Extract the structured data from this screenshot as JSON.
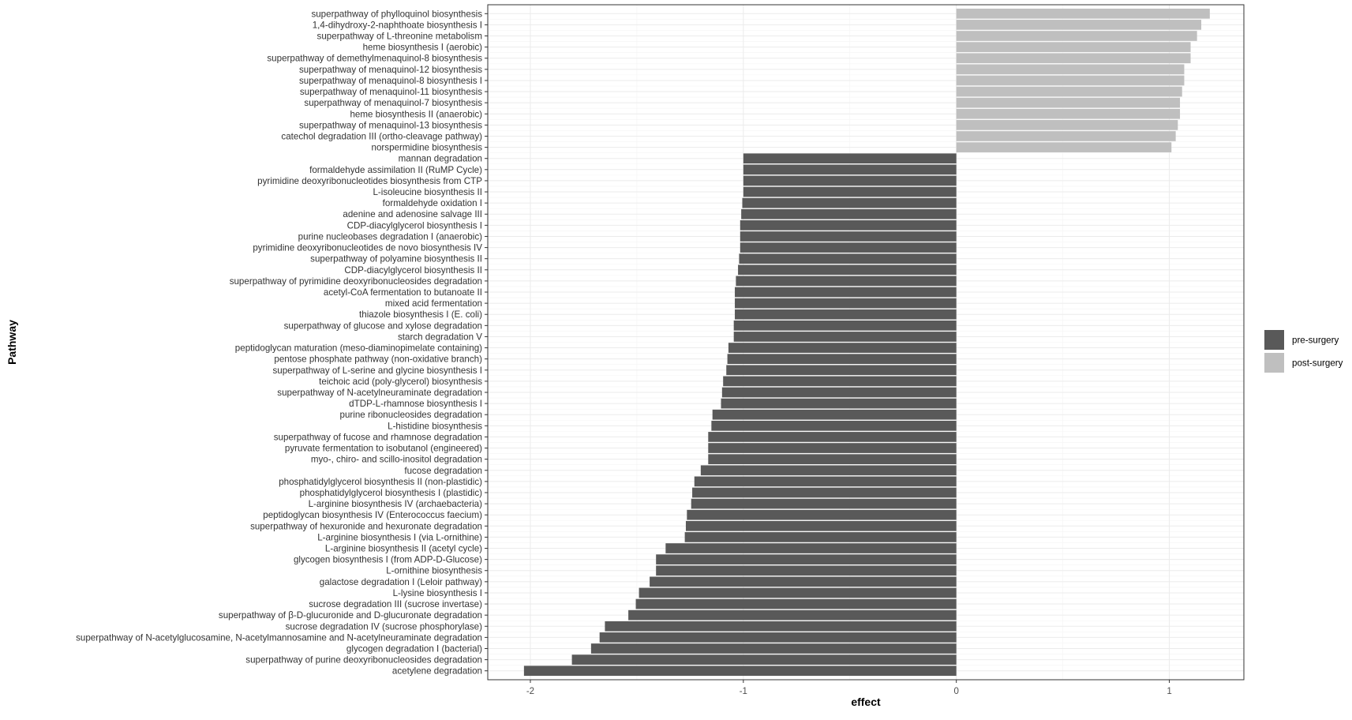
{
  "chart_data": {
    "type": "bar",
    "orientation": "horizontal",
    "xlabel": "effect",
    "ylabel": "Pathway",
    "xlim": [
      -2.2,
      1.35
    ],
    "xticks": [
      -2,
      -1,
      0,
      1
    ],
    "xtick_labels": [
      "-2",
      "-1",
      "0",
      "1"
    ],
    "grid": true,
    "legend_position": "right",
    "colors": {
      "pre-surgery": "#595959",
      "post-surgery": "#bfbfbf"
    },
    "legend": [
      "pre-surgery",
      "post-surgery"
    ],
    "categories": [
      "superpathway of phylloquinol biosynthesis",
      "1,4-dihydroxy-2-naphthoate biosynthesis I",
      "superpathway of L-threonine metabolism",
      "heme biosynthesis I (aerobic)",
      "superpathway of demethylmenaquinol-8 biosynthesis",
      "superpathway of menaquinol-12 biosynthesis",
      "superpathway of menaquinol-8 biosynthesis I",
      "superpathway of menaquinol-11 biosynthesis",
      "superpathway of menaquinol-7 biosynthesis",
      "heme biosynthesis II (anaerobic)",
      "superpathway of menaquinol-13 biosynthesis",
      "catechol degradation III (ortho-cleavage pathway)",
      "norspermidine biosynthesis",
      "mannan degradation",
      "formaldehyde assimilation II (RuMP Cycle)",
      "pyrimidine deoxyribonucleotides biosynthesis from CTP",
      "L-isoleucine biosynthesis II",
      "formaldehyde oxidation I",
      "adenine and adenosine salvage III",
      "CDP-diacylglycerol biosynthesis I",
      "purine nucleobases degradation I (anaerobic)",
      "pyrimidine deoxyribonucleotides de novo biosynthesis IV",
      "superpathway of polyamine biosynthesis II",
      "CDP-diacylglycerol biosynthesis II",
      "superpathway of pyrimidine deoxyribonucleosides degradation",
      "acetyl-CoA fermentation to butanoate II",
      "mixed acid fermentation",
      "thiazole biosynthesis I (E. coli)",
      "superpathway of glucose and xylose degradation",
      "starch degradation V",
      "peptidoglycan maturation (meso-diaminopimelate containing)",
      "pentose phosphate pathway (non-oxidative branch)",
      "superpathway of L-serine and glycine biosynthesis I",
      "teichoic acid (poly-glycerol) biosynthesis",
      "superpathway of N-acetylneuraminate degradation",
      "dTDP-L-rhamnose biosynthesis I",
      "purine ribonucleosides degradation",
      "L-histidine biosynthesis",
      "superpathway of fucose and rhamnose degradation",
      "pyruvate fermentation to isobutanol (engineered)",
      "myo-, chiro- and scillo-inositol degradation",
      "fucose degradation",
      "phosphatidylglycerol biosynthesis II (non-plastidic)",
      "phosphatidylglycerol biosynthesis I (plastidic)",
      "L-arginine biosynthesis IV (archaebacteria)",
      "peptidoglycan biosynthesis IV (Enterococcus faecium)",
      "superpathway of hexuronide and hexuronate degradation",
      "L-arginine biosynthesis I (via L-ornithine)",
      "L-arginine biosynthesis II (acetyl cycle)",
      "glycogen biosynthesis I (from ADP-D-Glucose)",
      "L-ornithine biosynthesis",
      "galactose degradation I (Leloir pathway)",
      "L-lysine biosynthesis I",
      "sucrose degradation III (sucrose invertase)",
      "superpathway of &beta;-D-glucuronide and D-glucuronate degradation",
      "sucrose degradation IV (sucrose phosphorylase)",
      "superpathway of N-acetylglucosamine, N-acetylmannosamine and N-acetylneuraminate degradation",
      "glycogen degradation I (bacterial)",
      "superpathway of purine deoxyribonucleosides degradation",
      "acetylene degradation"
    ],
    "values": [
      1.19,
      1.15,
      1.13,
      1.1,
      1.1,
      1.07,
      1.07,
      1.06,
      1.05,
      1.05,
      1.04,
      1.03,
      1.01,
      -1.0,
      -1.0,
      -1.0,
      -1.0,
      -1.005,
      -1.01,
      -1.015,
      -1.015,
      -1.015,
      -1.02,
      -1.025,
      -1.035,
      -1.04,
      -1.04,
      -1.04,
      -1.045,
      -1.045,
      -1.07,
      -1.075,
      -1.08,
      -1.095,
      -1.1,
      -1.105,
      -1.145,
      -1.15,
      -1.165,
      -1.165,
      -1.165,
      -1.2,
      -1.23,
      -1.24,
      -1.245,
      -1.265,
      -1.27,
      -1.275,
      -1.365,
      -1.41,
      -1.41,
      -1.44,
      -1.49,
      -1.505,
      -1.54,
      -1.65,
      -1.675,
      -1.715,
      -1.805,
      -2.03
    ],
    "groups": [
      "post-surgery",
      "post-surgery",
      "post-surgery",
      "post-surgery",
      "post-surgery",
      "post-surgery",
      "post-surgery",
      "post-surgery",
      "post-surgery",
      "post-surgery",
      "post-surgery",
      "post-surgery",
      "post-surgery",
      "pre-surgery",
      "pre-surgery",
      "pre-surgery",
      "pre-surgery",
      "pre-surgery",
      "pre-surgery",
      "pre-surgery",
      "pre-surgery",
      "pre-surgery",
      "pre-surgery",
      "pre-surgery",
      "pre-surgery",
      "pre-surgery",
      "pre-surgery",
      "pre-surgery",
      "pre-surgery",
      "pre-surgery",
      "pre-surgery",
      "pre-surgery",
      "pre-surgery",
      "pre-surgery",
      "pre-surgery",
      "pre-surgery",
      "pre-surgery",
      "pre-surgery",
      "pre-surgery",
      "pre-surgery",
      "pre-surgery",
      "pre-surgery",
      "pre-surgery",
      "pre-surgery",
      "pre-surgery",
      "pre-surgery",
      "pre-surgery",
      "pre-surgery",
      "pre-surgery",
      "pre-surgery",
      "pre-surgery",
      "pre-surgery",
      "pre-surgery",
      "pre-surgery",
      "pre-surgery",
      "pre-surgery",
      "pre-surgery",
      "pre-surgery",
      "pre-surgery",
      "pre-surgery"
    ]
  }
}
